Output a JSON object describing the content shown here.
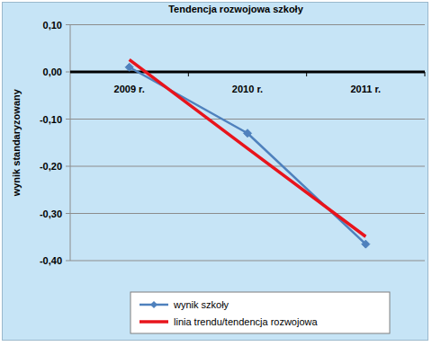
{
  "chart_data": {
    "type": "line",
    "title": "Tendencja rozwojowa szkoły",
    "y_label": "wynik standaryzowany",
    "categories": [
      "2009 r.",
      "2010 r.",
      "2011 r."
    ],
    "series": [
      {
        "name": "wynik szkoły",
        "color": "#4f81bd",
        "values": [
          0.01,
          -0.13,
          -0.365
        ],
        "marker": "diamond",
        "line_style": "solid"
      },
      {
        "name": "linia trendu/tendencja rozwojowa",
        "color": "#e8141c",
        "values": [
          0.026,
          -0.162,
          -0.349
        ],
        "marker": "none",
        "line_style": "solid"
      }
    ],
    "ylim": [
      -0.4,
      0.1
    ],
    "yticks": [
      {
        "value": 0.1,
        "label": "0,10"
      },
      {
        "value": 0,
        "label": "0,00"
      },
      {
        "value": -0.1,
        "label": "-0,10"
      },
      {
        "value": -0.2,
        "label": "-0,20"
      },
      {
        "value": -0.3,
        "label": "-0,30"
      },
      {
        "value": -0.4,
        "label": "-0,40"
      }
    ],
    "grid": true,
    "legend": "bottom"
  }
}
